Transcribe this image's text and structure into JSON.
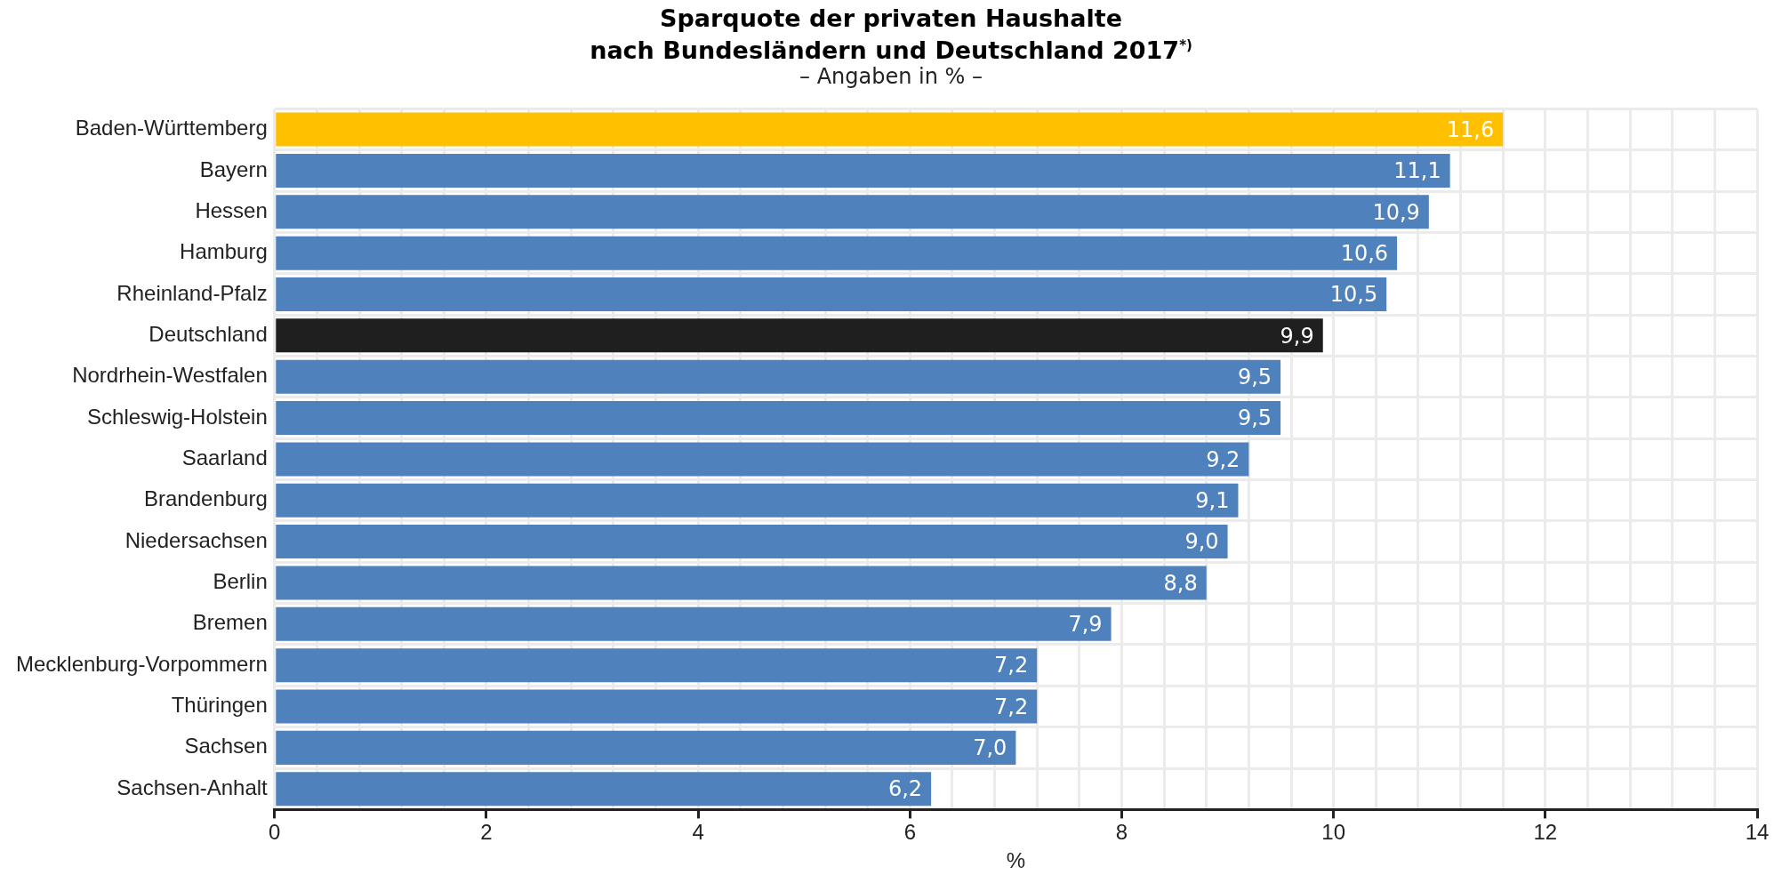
{
  "chart_data": {
    "type": "bar",
    "orientation": "horizontal",
    "title": "Sparquote der privaten Haushalte\nnach Bundesländern und Deutschland 2017$^{*)}$",
    "subtitle": "– Angaben in % –",
    "xlabel": "%",
    "categories": [
      "Baden-Württemberg",
      "Bayern",
      "Hessen",
      "Hamburg",
      "Rheinland-Pfalz",
      "Deutschland",
      "Nordrhein-Westfalen",
      "Schleswig-Holstein",
      "Saarland",
      "Brandenburg",
      "Niedersachsen",
      "Berlin",
      "Bremen",
      "Mecklenburg-Vorpommern",
      "Thüringen",
      "Sachsen",
      "Sachsen-Anhalt"
    ],
    "values": [
      11.6,
      11.1,
      10.9,
      10.6,
      10.5,
      9.9,
      9.5,
      9.5,
      9.2,
      9.1,
      9.0,
      8.8,
      7.9,
      7.2,
      7.2,
      7.0,
      6.2
    ],
    "colors": [
      "#ffc000",
      "#4f81bd",
      "#4f81bd",
      "#4f81bd",
      "#4f81bd",
      "#1f1f1f",
      "#4f81bd",
      "#4f81bd",
      "#4f81bd",
      "#4f81bd",
      "#4f81bd",
      "#4f81bd",
      "#4f81bd",
      "#4f81bd",
      "#4f81bd",
      "#4f81bd",
      "#4f81bd"
    ],
    "value_labels": [
      "11,6",
      "11,1",
      "10,9",
      "10,6",
      "10,5",
      "9,9",
      "9,5",
      "9,5",
      "9,2",
      "9,1",
      "9,0",
      "8,8",
      "7,9",
      "7,2",
      "7,2",
      "7,0",
      "6,2"
    ],
    "xlim": [
      0,
      14
    ],
    "xticks": [
      0,
      {
        "value": 0.4,
        "label": null
      },
      {
        "value": 0.8,
        "label": null
      },
      {
        "value": 1.2,
        "label": null
      },
      {
        "value": 1.6,
        "label": null
      },
      2,
      {
        "value": 2.4,
        "label": null
      },
      {
        "value": 2.8,
        "label": null
      },
      {
        "value": 3.2,
        "label": null
      },
      {
        "value": 3.6,
        "label": null
      },
      4,
      {
        "value": 4.4,
        "label": null
      },
      {
        "value": 4.8,
        "label": null
      },
      {
        "value": 5.2,
        "label": null
      },
      {
        "value": 5.6,
        "label": null
      },
      6,
      {
        "value": 6.4,
        "label": null
      },
      {
        "value": 6.8,
        "label": null
      },
      {
        "value": 7.2,
        "label": null
      },
      {
        "value": 7.6,
        "label": null
      },
      8,
      {
        "value": 8.4,
        "label": null
      },
      {
        "value": 8.8,
        "label": null
      },
      {
        "value": 9.2,
        "label": null
      },
      {
        "value": 9.6,
        "label": null
      },
      10,
      {
        "value": 10.4,
        "label": null
      },
      {
        "value": 10.8,
        "label": null
      },
      {
        "value": 11.2,
        "label": null
      },
      {
        "value": 11.6,
        "label": null
      },
      12,
      {
        "value": 12.4,
        "label": null
      },
      {
        "value": 12.8,
        "label": null
      },
      {
        "value": 13.2,
        "label": null
      },
      {
        "value": 13.6,
        "label": null
      },
      14
    ],
    "grid": true
  }
}
